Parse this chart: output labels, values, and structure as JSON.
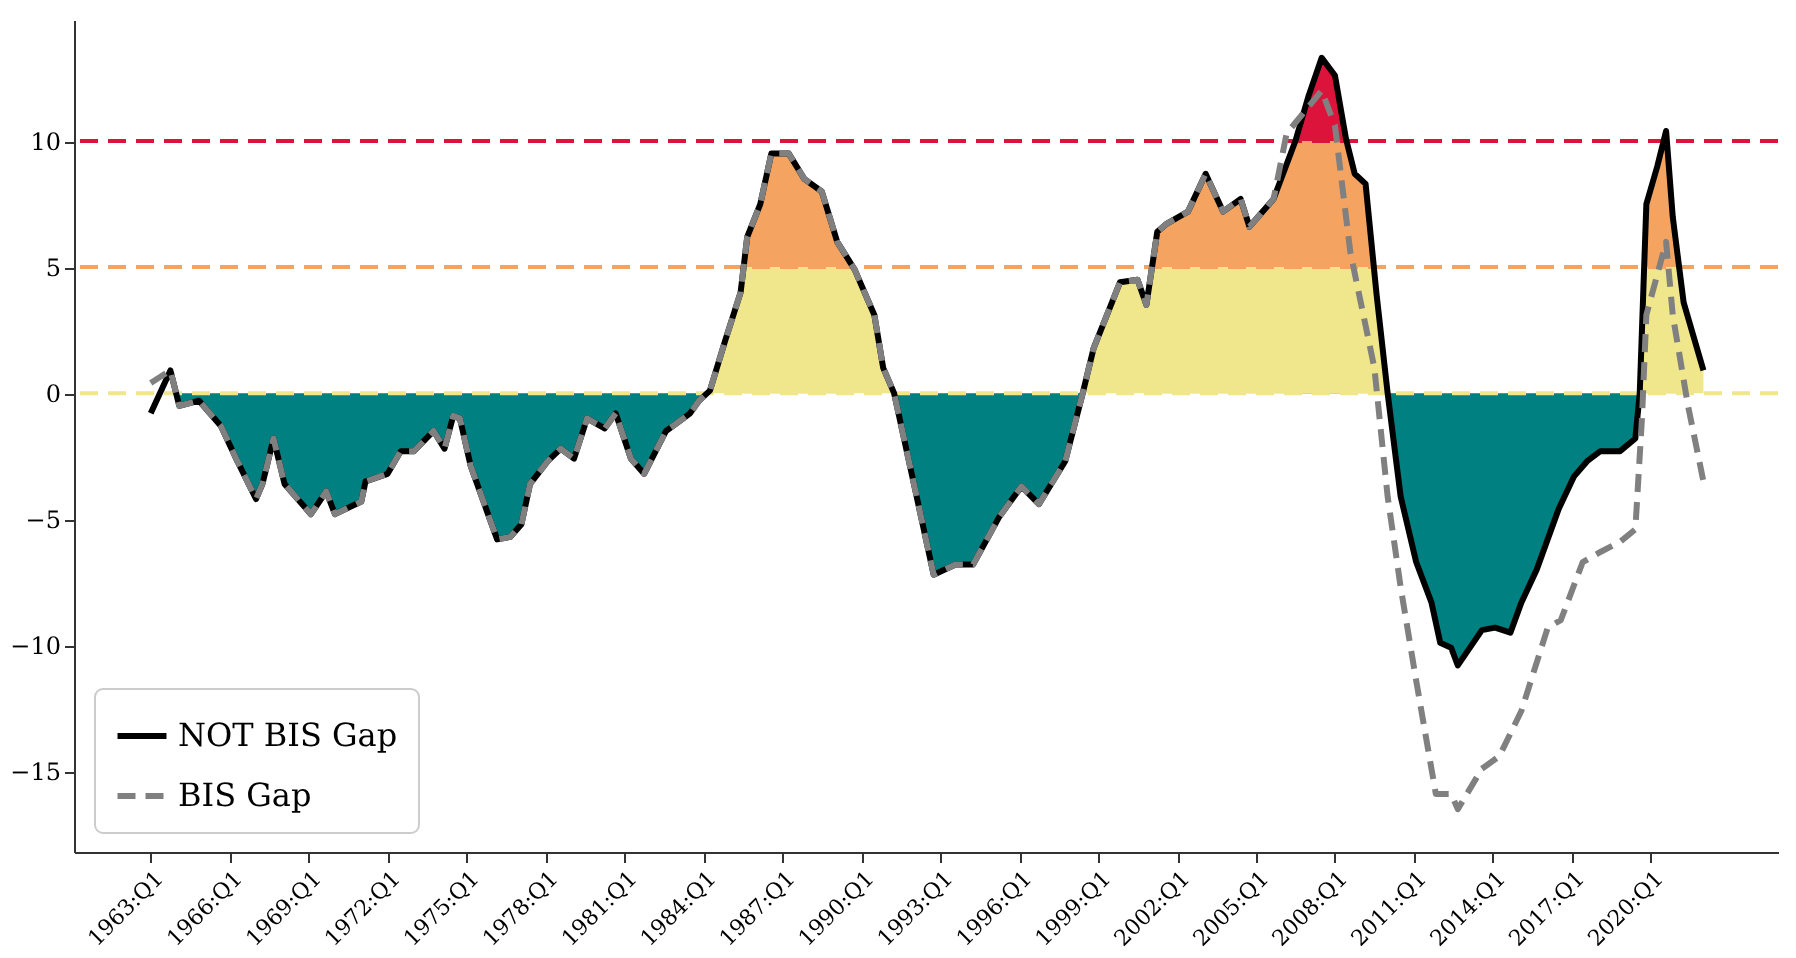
{
  "chart_data": {
    "type": "line",
    "xlim": [
      "1960-02",
      "2024-11"
    ],
    "ylim": [
      -18.2,
      14.8
    ],
    "xticks": [
      {
        "value": "1963-01",
        "label": "1963:Q1"
      },
      {
        "value": "1966-01",
        "label": "1966:Q1"
      },
      {
        "value": "1969-01",
        "label": "1969:Q1"
      },
      {
        "value": "1972-01",
        "label": "1972:Q1"
      },
      {
        "value": "1975-01",
        "label": "1975:Q1"
      },
      {
        "value": "1978-01",
        "label": "1978:Q1"
      },
      {
        "value": "1981-01",
        "label": "1981:Q1"
      },
      {
        "value": "1984-01",
        "label": "1984:Q1"
      },
      {
        "value": "1987-01",
        "label": "1987:Q1"
      },
      {
        "value": "1990-01",
        "label": "1990:Q1"
      },
      {
        "value": "1993-01",
        "label": "1993:Q1"
      },
      {
        "value": "1996-01",
        "label": "1996:Q1"
      },
      {
        "value": "1999-01",
        "label": "1999:Q1"
      },
      {
        "value": "2002-01",
        "label": "2002:Q1"
      },
      {
        "value": "2005-01",
        "label": "2005:Q1"
      },
      {
        "value": "2008-01",
        "label": "2008:Q1"
      },
      {
        "value": "2011-01",
        "label": "2011:Q1"
      },
      {
        "value": "2014-01",
        "label": "2014:Q1"
      },
      {
        "value": "2017-01",
        "label": "2017:Q1"
      },
      {
        "value": "2020-01",
        "label": "2020:Q1"
      }
    ],
    "yticks": [
      -15,
      -10,
      -5,
      0,
      5,
      10
    ],
    "legend": "bottom left",
    "ref_lines": [
      {
        "axis": "y",
        "value": 10,
        "color": "#dc143c",
        "line_style": "dashed"
      },
      {
        "axis": "y",
        "value": 5,
        "color": "#f4a460",
        "line_style": "dashed"
      },
      {
        "axis": "y",
        "value": 0,
        "color": "#f0e68c",
        "line_style": "dashed"
      }
    ],
    "series": [
      {
        "type": "area",
        "color": "#dc143c",
        "x": [
          "2006-07",
          "2007-01",
          "2007-07",
          "2008-01",
          "2008-06"
        ],
        "values": [
          10,
          11.8,
          13.3,
          12.6,
          10.1
        ]
      },
      {
        "type": "area",
        "color": "#f4a460",
        "x": [
          "1985-06-30",
          "1985-07",
          "1985-09",
          "1986-03",
          "1986-08",
          "1987-04",
          "1987-11",
          "1988-07",
          "1989-02",
          "1989-09",
          "1989-09-02",
          "2001-01-31",
          "2001-02",
          "2001-04",
          "2001-08",
          "2002-06",
          "2003-02",
          "2003-10",
          "2004-06",
          "2004-10",
          "2005-09",
          "2006-07",
          "2008-06",
          "2008-10",
          "2009-03",
          "2009-07",
          "2009-07-02",
          "2019-09-30",
          "2019-10",
          "2019-11",
          "2020-04",
          "2020-08",
          "2020-11",
          "2021-02",
          "2021-02-02"
        ],
        "values": [
          0,
          5,
          6.2,
          7.5,
          9.5,
          9.5,
          8.5,
          8.0,
          6.0,
          5,
          0,
          0,
          5,
          6.4,
          6.7,
          7.2,
          8.7,
          7.2,
          7.7,
          6.6,
          7.7,
          10,
          10,
          8.7,
          8.3,
          5,
          0,
          0,
          5,
          7.5,
          9.0,
          10.4,
          7.0,
          5,
          0
        ]
      },
      {
        "type": "area",
        "color": "#f0e68c",
        "x": [
          "1984-04",
          "1984-11",
          "1985-06",
          "1985-07",
          "1989-09",
          "1989-10",
          "1990-07",
          "1990-11",
          "1991-04",
          "1998-06",
          "1998-11",
          "1999-06",
          "1999-11",
          "2000-07",
          "2000-11",
          "2001-02",
          "2009-07",
          "2009-08",
          "2010-01",
          "2019-08",
          "2019-10",
          "2021-02",
          "2021-04",
          "2022-01"
        ],
        "values": [
          0,
          2.1,
          4.0,
          5,
          5,
          4.9,
          3.1,
          1.0,
          0,
          0,
          1.8,
          3.3,
          4.4,
          4.5,
          3.5,
          5,
          5,
          3.9,
          0,
          0,
          5,
          5,
          3.6,
          0.9
        ]
      },
      {
        "type": "area",
        "color": "#008080",
        "x": [
          "1964-01",
          "1964-02",
          "1964-11",
          "1965-09",
          "1966-04",
          "1967-01",
          "1967-04",
          "1967-09",
          "1968-02",
          "1969-02",
          "1969-09",
          "1970-01",
          "1971-01",
          "1971-03",
          "1972-01",
          "1972-07",
          "1973-01",
          "1973-10",
          "1974-03",
          "1974-07",
          "1974-10",
          "1975-03",
          "1975-10",
          "1976-03",
          "1976-09",
          "1977-02",
          "1977-06",
          "1978-02",
          "1978-08",
          "1979-02",
          "1979-08",
          "1980-04",
          "1980-09",
          "1981-04",
          "1981-10",
          "1982-08",
          "1983-07",
          "1983-11",
          "1984-04",
          "1991-04",
          "1992-01",
          "1992-10",
          "1993-08",
          "1994-04",
          "1995-04",
          "1996-02",
          "1996-10",
          "1997-10",
          "1998-06",
          "2010-01",
          "2010-07",
          "2011-02",
          "2011-09",
          "2012-01",
          "2012-06",
          "2012-09",
          "2013-08",
          "2014-02",
          "2014-09",
          "2015-02",
          "2015-09",
          "2016-07",
          "2017-02",
          "2017-08",
          "2018-02",
          "2018-11",
          "2019-06",
          "2019-08"
        ],
        "values": [
          0,
          -0.5,
          -0.3,
          -1.3,
          -2.6,
          -4.2,
          -3.6,
          -1.8,
          -3.6,
          -4.8,
          -3.9,
          -4.8,
          -4.3,
          -3.5,
          -3.2,
          -2.3,
          -2.3,
          -1.5,
          -2.2,
          -0.9,
          -1.0,
          -2.9,
          -4.6,
          -5.8,
          -5.7,
          -5.2,
          -3.6,
          -2.7,
          -2.2,
          -2.6,
          -1.0,
          -1.4,
          -0.8,
          -2.6,
          -3.2,
          -1.5,
          -0.8,
          -0.3,
          0,
          0,
          -3.6,
          -7.2,
          -6.8,
          -6.8,
          -4.9,
          -3.7,
          -4.4,
          -2.7,
          0,
          0,
          -4.1,
          -6.7,
          -8.3,
          -9.9,
          -10.1,
          -10.8,
          -9.4,
          -9.3,
          -9.5,
          -8.3,
          -7.0,
          -4.6,
          -3.3,
          -2.7,
          -2.3,
          -2.3,
          -1.8,
          0
        ]
      },
      {
        "name": "NOT BIS Gap",
        "color": "#000000",
        "line_style": "solid",
        "x": [
          "1963-01",
          "1963-10",
          "1964-02",
          "1964-11",
          "1965-09",
          "1966-04",
          "1967-01",
          "1967-04",
          "1967-09",
          "1968-02",
          "1969-02",
          "1969-09",
          "1970-01",
          "1971-01",
          "1971-03",
          "1972-01",
          "1972-07",
          "1973-01",
          "1973-10",
          "1974-03",
          "1974-07",
          "1974-10",
          "1975-03",
          "1975-10",
          "1976-03",
          "1976-09",
          "1977-02",
          "1977-06",
          "1978-02",
          "1978-08",
          "1979-02",
          "1979-08",
          "1980-04",
          "1980-09",
          "1981-04",
          "1981-10",
          "1982-08",
          "1983-07",
          "1983-11",
          "1984-04",
          "1984-11",
          "1985-06",
          "1985-09",
          "1986-03",
          "1986-08",
          "1987-04",
          "1987-11",
          "1988-07",
          "1989-02",
          "1989-10",
          "1990-07",
          "1990-11",
          "1991-04",
          "1992-01",
          "1992-10",
          "1993-08",
          "1994-04",
          "1995-04",
          "1996-02",
          "1996-10",
          "1997-10",
          "1998-06",
          "1998-11",
          "1999-06",
          "1999-11",
          "2000-07",
          "2000-11",
          "2001-04",
          "2001-08",
          "2002-06",
          "2003-02",
          "2003-10",
          "2004-06",
          "2004-10",
          "2005-09",
          "2006-07",
          "2007-01",
          "2007-07",
          "2008-01",
          "2008-06",
          "2008-10",
          "2009-03",
          "2009-08",
          "2010-01",
          "2010-07",
          "2011-02",
          "2011-09",
          "2012-01",
          "2012-06",
          "2012-09",
          "2013-08",
          "2014-02",
          "2014-09",
          "2015-02",
          "2015-09",
          "2016-07",
          "2017-02",
          "2017-08",
          "2018-02",
          "2018-11",
          "2019-06",
          "2019-08",
          "2019-11",
          "2020-04",
          "2020-08",
          "2020-11",
          "2021-04",
          "2022-01"
        ],
        "values": [
          -0.8,
          0.9,
          -0.5,
          -0.3,
          -1.3,
          -2.6,
          -4.2,
          -3.6,
          -1.8,
          -3.6,
          -4.8,
          -3.9,
          -4.8,
          -4.3,
          -3.5,
          -3.2,
          -2.3,
          -2.3,
          -1.5,
          -2.2,
          -0.9,
          -1.0,
          -2.9,
          -4.6,
          -5.8,
          -5.7,
          -5.2,
          -3.6,
          -2.7,
          -2.2,
          -2.6,
          -1.0,
          -1.4,
          -0.8,
          -2.6,
          -3.2,
          -1.5,
          -0.8,
          -0.3,
          0.1,
          2.1,
          4.0,
          6.2,
          7.5,
          9.5,
          9.5,
          8.5,
          8.0,
          6.0,
          4.9,
          3.1,
          1.0,
          0,
          -3.6,
          -7.2,
          -6.8,
          -6.8,
          -4.9,
          -3.7,
          -4.4,
          -2.7,
          0,
          1.8,
          3.3,
          4.4,
          4.5,
          3.5,
          6.4,
          6.7,
          7.2,
          8.7,
          7.2,
          7.7,
          6.6,
          7.7,
          10,
          11.8,
          13.3,
          12.6,
          10.1,
          8.7,
          8.3,
          3.9,
          0,
          -4.1,
          -6.7,
          -8.3,
          -9.9,
          -10.1,
          -10.8,
          -9.4,
          -9.3,
          -9.5,
          -8.3,
          -7.0,
          -4.6,
          -3.3,
          -2.7,
          -2.3,
          -2.3,
          -1.8,
          0,
          7.5,
          9.0,
          10.4,
          7.0,
          3.6,
          0.9
        ]
      },
      {
        "name": "BIS Gap",
        "color": "#808080",
        "line_style": "dashed",
        "x": [
          "1963-01",
          "1963-10",
          "1964-02",
          "1964-11",
          "1965-09",
          "1966-04",
          "1967-01",
          "1967-04",
          "1967-09",
          "1968-02",
          "1969-02",
          "1969-09",
          "1970-01",
          "1971-01",
          "1971-03",
          "1972-01",
          "1972-07",
          "1973-01",
          "1973-10",
          "1974-03",
          "1974-07",
          "1974-10",
          "1975-03",
          "1975-10",
          "1976-03",
          "1976-09",
          "1977-02",
          "1977-06",
          "1978-02",
          "1978-08",
          "1979-02",
          "1979-08",
          "1980-04",
          "1980-09",
          "1981-04",
          "1981-10",
          "1982-08",
          "1983-07",
          "1983-11",
          "1984-04",
          "1984-11",
          "1985-06",
          "1985-09",
          "1986-03",
          "1986-08",
          "1987-04",
          "1987-11",
          "1988-07",
          "1989-02",
          "1989-10",
          "1990-07",
          "1990-11",
          "1991-04",
          "1992-01",
          "1992-10",
          "1993-08",
          "1994-04",
          "1995-04",
          "1996-02",
          "1996-10",
          "1997-10",
          "1998-06",
          "1998-11",
          "1999-06",
          "1999-11",
          "2000-07",
          "2000-11",
          "2001-04",
          "2001-08",
          "2002-06",
          "2003-02",
          "2003-10",
          "2004-06",
          "2004-10",
          "2005-09",
          "2006-03",
          "2007-07",
          "2008-01",
          "2008-08",
          "2009-07",
          "2010-01",
          "2010-07",
          "2011-02",
          "2011-11",
          "2012-06",
          "2012-09",
          "2013-08",
          "2014-04",
          "2015-02",
          "2016-02",
          "2016-08",
          "2017-06",
          "2018-02",
          "2018-11",
          "2019-06",
          "2019-09",
          "2019-11",
          "2020-08",
          "2020-11",
          "2021-06",
          "2022-01"
        ],
        "values": [
          0.4,
          0.9,
          -0.5,
          -0.3,
          -1.3,
          -2.6,
          -4.2,
          -3.6,
          -1.8,
          -3.6,
          -4.8,
          -3.9,
          -4.8,
          -4.3,
          -3.5,
          -3.2,
          -2.3,
          -2.3,
          -1.5,
          -2.2,
          -0.9,
          -1.0,
          -2.9,
          -4.6,
          -5.8,
          -5.7,
          -5.2,
          -3.6,
          -2.7,
          -2.2,
          -2.6,
          -1.0,
          -1.4,
          -0.8,
          -2.6,
          -3.2,
          -1.5,
          -0.8,
          -0.3,
          0.1,
          2.1,
          4.0,
          6.2,
          7.5,
          9.5,
          9.5,
          8.5,
          8.0,
          6.0,
          4.9,
          3.1,
          1.0,
          0,
          -3.6,
          -7.2,
          -6.8,
          -6.8,
          -4.9,
          -3.7,
          -4.4,
          -2.7,
          0,
          1.8,
          3.3,
          4.4,
          4.5,
          3.5,
          6.4,
          6.7,
          7.2,
          8.7,
          7.2,
          7.7,
          6.6,
          7.7,
          10.3,
          12.0,
          10.6,
          5.6,
          1.0,
          -4.1,
          -7.7,
          -11.4,
          -15.9,
          -15.9,
          -16.5,
          -14.9,
          -14.4,
          -12.6,
          -9.3,
          -9.0,
          -6.7,
          -6.3,
          -5.9,
          -5.4,
          -1.0,
          3.1,
          6.0,
          3.1,
          -0.5,
          -3.5
        ]
      }
    ]
  }
}
